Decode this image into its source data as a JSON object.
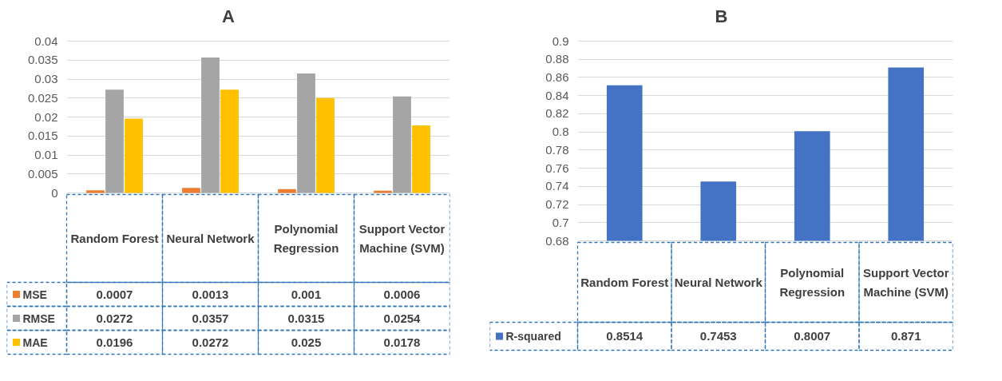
{
  "chart_data": [
    {
      "type": "bar",
      "title": "A",
      "categories": [
        "Random Forest",
        "Neural Network",
        "Polynomial Regression",
        "Support Vector Machine (SVM)"
      ],
      "series": [
        {
          "name": "MSE",
          "color": "#ed7d31",
          "values": [
            0.0007,
            0.0013,
            0.001,
            0.0006
          ]
        },
        {
          "name": "RMSE",
          "color": "#a5a5a5",
          "values": [
            0.0272,
            0.0357,
            0.0315,
            0.0254
          ]
        },
        {
          "name": "MAE",
          "color": "#ffc000",
          "values": [
            0.0196,
            0.0272,
            0.025,
            0.0178
          ]
        }
      ],
      "ylim": [
        0,
        0.04
      ],
      "yticks": [
        0,
        0.005,
        0.01,
        0.015,
        0.02,
        0.025,
        0.03,
        0.035,
        0.04
      ],
      "grid": "y",
      "legend": "bottom",
      "data_labels": true
    },
    {
      "type": "bar",
      "title": "B",
      "categories": [
        "Random Forest",
        "Neural Network",
        "Polynomial Regression",
        "Support Vector Machine (SVM)"
      ],
      "series": [
        {
          "name": "R-squared",
          "color": "#4472c4",
          "values": [
            0.8514,
            0.7453,
            0.8007,
            0.871
          ]
        }
      ],
      "ylim": [
        0.68,
        0.9
      ],
      "yticks": [
        0.68,
        0.7,
        0.72,
        0.74,
        0.76,
        0.78,
        0.8,
        0.82,
        0.84,
        0.86,
        0.88,
        0.9
      ],
      "grid": "y",
      "legend": "bottom",
      "data_labels": true
    }
  ]
}
